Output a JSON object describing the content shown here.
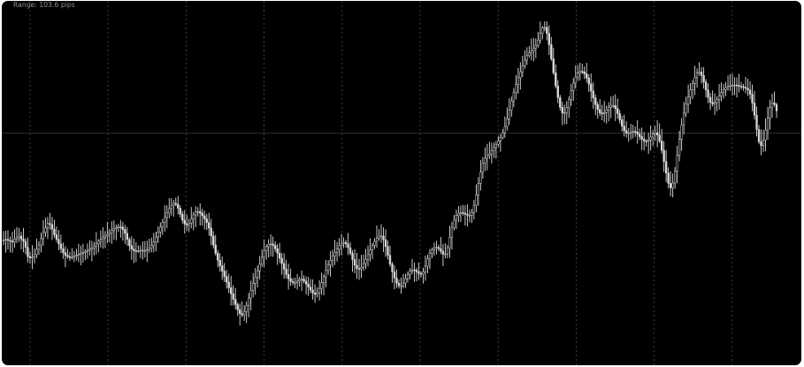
{
  "chart": {
    "range_label": "Range: 103.6 pips"
  },
  "colors": {
    "background": "#000000",
    "candle": "#dcdcdc",
    "grid": "#4a4a4a",
    "midline": "#2c2c2c"
  },
  "chart_data": {
    "type": "candlestick",
    "title": "",
    "xlabel": "",
    "ylabel": "",
    "y_unit": "pips",
    "ylim": [
      0,
      103.6
    ],
    "grid": true,
    "reference_level": 68.5,
    "vertical_gridlines": 10,
    "series": [
      {
        "values": [
          36.2,
          36.4,
          36.1,
          35.9,
          35.6,
          36.5,
          37.0,
          37.4,
          36.5,
          35.8,
          34.0,
          31.2,
          30.8,
          31.1,
          31.8,
          33.4,
          34.7,
          36.6,
          38.5,
          39.9,
          41.2,
          40.9,
          39.5,
          37.8,
          36.4,
          35.0,
          33.6,
          32.4,
          31.6,
          31.2,
          30.9,
          31.0,
          31.3,
          31.6,
          31.9,
          32.2,
          32.5,
          32.8,
          33.1,
          33.4,
          33.8,
          34.4,
          35.1,
          35.8,
          36.4,
          36.9,
          37.4,
          37.9,
          38.4,
          39.1,
          39.7,
          40.0,
          40.2,
          40.1,
          39.4,
          38.2,
          36.4,
          34.5,
          33.5,
          33.0,
          32.9,
          33.0,
          33.1,
          33.1,
          33.1,
          33.3,
          33.8,
          34.5,
          35.6,
          37.1,
          38.6,
          40.1,
          41.6,
          43.0,
          44.4,
          45.7,
          46.7,
          47.3,
          47.0,
          45.8,
          44.0,
          42.2,
          41.0,
          40.7,
          41.3,
          42.6,
          43.8,
          44.7,
          44.8,
          44.3,
          43.5,
          42.6,
          41.5,
          39.8,
          37.4,
          34.7,
          32.2,
          30.1,
          28.4,
          26.8,
          25.2,
          23.5,
          21.8,
          20.0,
          18.3,
          16.7,
          15.2,
          14.0,
          13.6,
          14.6,
          16.5,
          18.7,
          21.0,
          23.1,
          25.0,
          26.9,
          28.9,
          31.0,
          32.9,
          34.2,
          34.9,
          35.0,
          34.6,
          33.6,
          32.2,
          30.7,
          29.1,
          27.4,
          25.8,
          24.5,
          23.7,
          23.4,
          23.4,
          23.8,
          24.3,
          24.4,
          23.8,
          22.9,
          22.0,
          21.1,
          20.2,
          19.8,
          20.3,
          21.6,
          23.3,
          25.1,
          27.0,
          28.7,
          30.1,
          31.4,
          32.5,
          33.5,
          34.5,
          35.2,
          35.5,
          35.0,
          33.9,
          32.2,
          30.3,
          28.6,
          27.6,
          27.4,
          28.0,
          29.1,
          30.4,
          31.8,
          33.2,
          34.6,
          35.8,
          36.8,
          37.4,
          37.4,
          36.3,
          34.2,
          31.6,
          28.9,
          26.6,
          24.7,
          23.2,
          22.4,
          22.4,
          23.2,
          24.5,
          25.8,
          26.8,
          27.2,
          27.1,
          26.6,
          26.1,
          25.9,
          26.6,
          28.3,
          30.5,
          32.2,
          33.3,
          33.8,
          34.0,
          33.6,
          32.8,
          31.9,
          32.0,
          33.9,
          37.0,
          40.0,
          42.2,
          43.6,
          44.3,
          44.5,
          44.3,
          44.0,
          43.7,
          43.7,
          44.5,
          46.7,
          49.8,
          53.3,
          56.7,
          59.4,
          60.9,
          61.7,
          62.2,
          63.1,
          64.1,
          65.1,
          66.1,
          67.2,
          68.6,
          70.5,
          72.8,
          75.4,
          78.2,
          80.8,
          83.1,
          85.2,
          87.0,
          88.8,
          90.5,
          91.9,
          92.7,
          93.4,
          94.1,
          95.0,
          96.6,
          98.6,
          100.2,
          100.4,
          98.6,
          95.2,
          90.9,
          86.7,
          82.7,
          79.2,
          76.3,
          74.6,
          74.6,
          76.2,
          78.7,
          81.3,
          83.6,
          85.4,
          86.6,
          87.1,
          87.0,
          86.4,
          85.1,
          83.3,
          81.2,
          79.1,
          77.1,
          75.6,
          74.6,
          74.3,
          74.7,
          75.5,
          76.3,
          76.8,
          76.8,
          75.9,
          74.4,
          72.5,
          70.6,
          69.2,
          68.5,
          68.5,
          68.8,
          69.0,
          68.8,
          68.2,
          67.4,
          66.6,
          66.1,
          66.0,
          66.4,
          67.3,
          68.2,
          68.6,
          67.9,
          66.1,
          63.3,
          59.9,
          56.4,
          53.3,
          52.0,
          53.4,
          57.0,
          61.8,
          66.6,
          71.0,
          74.5,
          77.2,
          79.4,
          81.5,
          83.5,
          85.3,
          86.6,
          86.9,
          85.9,
          83.9,
          81.5,
          79.3,
          77.8,
          77.3,
          77.7,
          78.6,
          79.7,
          80.7,
          81.6,
          82.2,
          82.6,
          82.8,
          83.0,
          83.0,
          82.9,
          82.6,
          82.5,
          82.3,
          82.0,
          81.5,
          80.2,
          77.6,
          73.9,
          69.6,
          65.9,
          64.7,
          66.3,
          69.4,
          73.0,
          76.2,
          77.6,
          77.1,
          75.2
        ]
      }
    ]
  }
}
